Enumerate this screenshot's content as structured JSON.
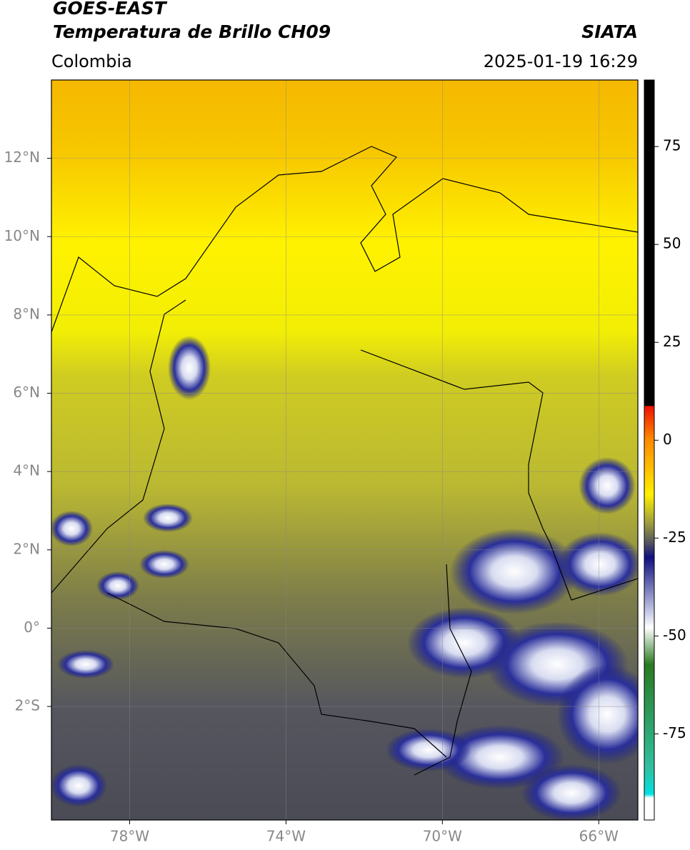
{
  "header": {
    "title_line1": "GOES-EAST",
    "title_line2": "Temperatura de Brillo CH09",
    "source": "SIATA",
    "region": "Colombia",
    "datetime": "2025-01-19 16:29"
  },
  "map": {
    "xlim": [
      -80,
      -65
    ],
    "ylim": [
      -4.9,
      14
    ],
    "grid": true,
    "xticks": [
      {
        "value": -78,
        "label": "78°W"
      },
      {
        "value": -74,
        "label": "74°W"
      },
      {
        "value": -70,
        "label": "70°W"
      },
      {
        "value": -66,
        "label": "66°W"
      }
    ],
    "yticks": [
      {
        "value": 12,
        "label": "12°N"
      },
      {
        "value": 10,
        "label": "10°N"
      },
      {
        "value": 8,
        "label": "8°N"
      },
      {
        "value": 6,
        "label": "6°N"
      },
      {
        "value": 4,
        "label": "4°N"
      },
      {
        "value": 2,
        "label": "2°N"
      },
      {
        "value": 0,
        "label": "0°"
      },
      {
        "value": -2,
        "label": "2°S"
      }
    ]
  },
  "colorbar": {
    "lim": [
      -97,
      92
    ],
    "ticks": [
      75,
      50,
      25,
      0,
      -25,
      -50,
      -75
    ]
  }
}
